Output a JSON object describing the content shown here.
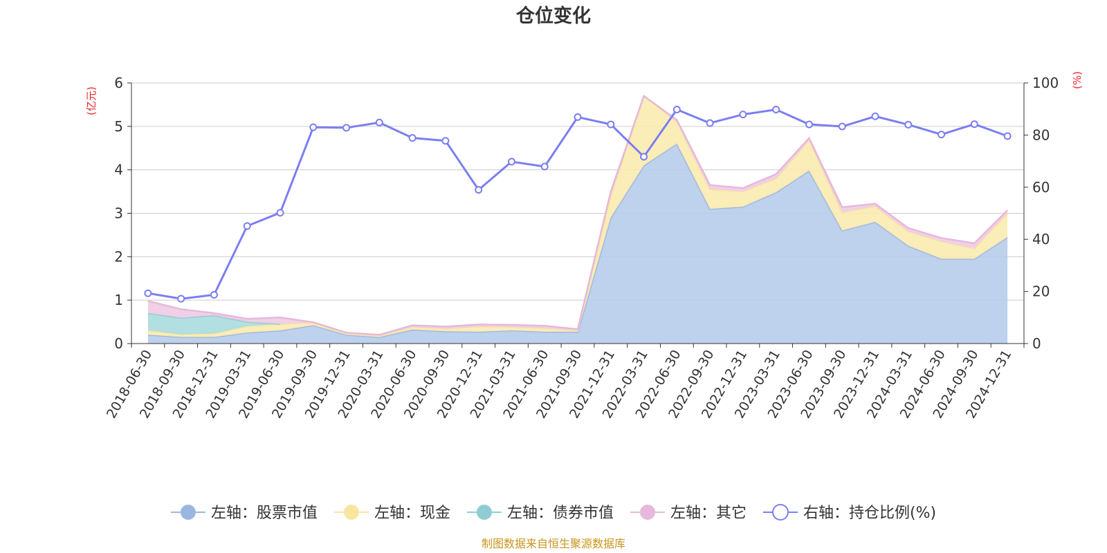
{
  "chart_data": {
    "type": "area",
    "title": "仓位变化",
    "left_unit": "(亿元)",
    "right_unit": "(%)",
    "left_ylim": [
      0,
      6
    ],
    "left_ticks": [
      "0",
      "1",
      "2",
      "3",
      "4",
      "5",
      "6"
    ],
    "right_ylim": [
      0,
      100
    ],
    "right_ticks": [
      "0",
      "20",
      "40",
      "60",
      "80",
      "100"
    ],
    "grid": true,
    "legend_position": "bottom",
    "categories": [
      "2018-06-30",
      "2018-09-30",
      "2018-12-31",
      "2019-03-31",
      "2019-06-30",
      "2019-09-30",
      "2019-12-31",
      "2020-03-31",
      "2020-06-30",
      "2020-09-30",
      "2020-12-31",
      "2021-03-31",
      "2021-06-30",
      "2021-09-30",
      "2021-12-31",
      "2022-03-31",
      "2022-06-30",
      "2022-09-30",
      "2022-12-31",
      "2023-03-31",
      "2023-06-30",
      "2023-09-30",
      "2023-12-31",
      "2024-03-31",
      "2024-06-30",
      "2024-09-30",
      "2024-12-31"
    ],
    "series": [
      {
        "name": "左轴：股票市值",
        "axis": "left",
        "kind": "area",
        "color": "#9bb6e0",
        "fill": "#b7cceb",
        "values": [
          0.2,
          0.15,
          0.15,
          0.25,
          0.3,
          0.42,
          0.2,
          0.15,
          0.32,
          0.28,
          0.27,
          0.3,
          0.27,
          0.27,
          2.9,
          4.1,
          4.6,
          3.1,
          3.15,
          3.48,
          3.98,
          2.6,
          2.8,
          2.25,
          1.95,
          1.95,
          2.45
        ]
      },
      {
        "name": "左轴：现金",
        "axis": "left",
        "kind": "area",
        "color": "#f8e6a0",
        "fill": "#faebb0",
        "values": [
          0.1,
          0.06,
          0.08,
          0.15,
          0.15,
          0.06,
          0.03,
          0.03,
          0.06,
          0.06,
          0.12,
          0.08,
          0.08,
          0.03,
          0.5,
          1.6,
          0.5,
          0.45,
          0.35,
          0.32,
          0.7,
          0.42,
          0.36,
          0.33,
          0.4,
          0.24,
          0.55
        ]
      },
      {
        "name": "左轴：债券市值",
        "axis": "left",
        "kind": "area",
        "color": "#90cdd3",
        "fill": "#a9dcdf",
        "values": [
          0.4,
          0.38,
          0.42,
          0.1,
          0.0,
          null,
          null,
          null,
          null,
          null,
          null,
          null,
          null,
          null,
          null,
          null,
          null,
          null,
          null,
          null,
          null,
          null,
          null,
          null,
          null,
          null,
          null
        ]
      },
      {
        "name": "左轴：其它",
        "axis": "left",
        "kind": "area",
        "color": "#e6b8dc",
        "fill": "#efcbe4",
        "values": [
          0.28,
          0.2,
          0.05,
          0.07,
          0.15,
          0.01,
          0.02,
          0.02,
          0.04,
          0.05,
          0.05,
          0.05,
          0.06,
          0.03,
          0.1,
          0.0,
          0.05,
          0.1,
          0.08,
          0.1,
          0.05,
          0.12,
          0.06,
          0.08,
          0.08,
          0.12,
          0.07
        ]
      },
      {
        "name": "右轴：持仓比例(%)",
        "axis": "right",
        "kind": "line",
        "color": "#7b7ef0",
        "values": [
          19.3,
          17.2,
          18.7,
          45.1,
          50.2,
          83.0,
          82.8,
          84.8,
          78.9,
          77.8,
          59.0,
          69.8,
          67.9,
          86.9,
          84.1,
          71.7,
          89.8,
          84.6,
          87.9,
          89.8,
          84.1,
          83.3,
          87.2,
          84.0,
          80.2,
          84.2,
          79.6
        ]
      }
    ],
    "source": "制图数据来自恒生聚源数据库"
  }
}
